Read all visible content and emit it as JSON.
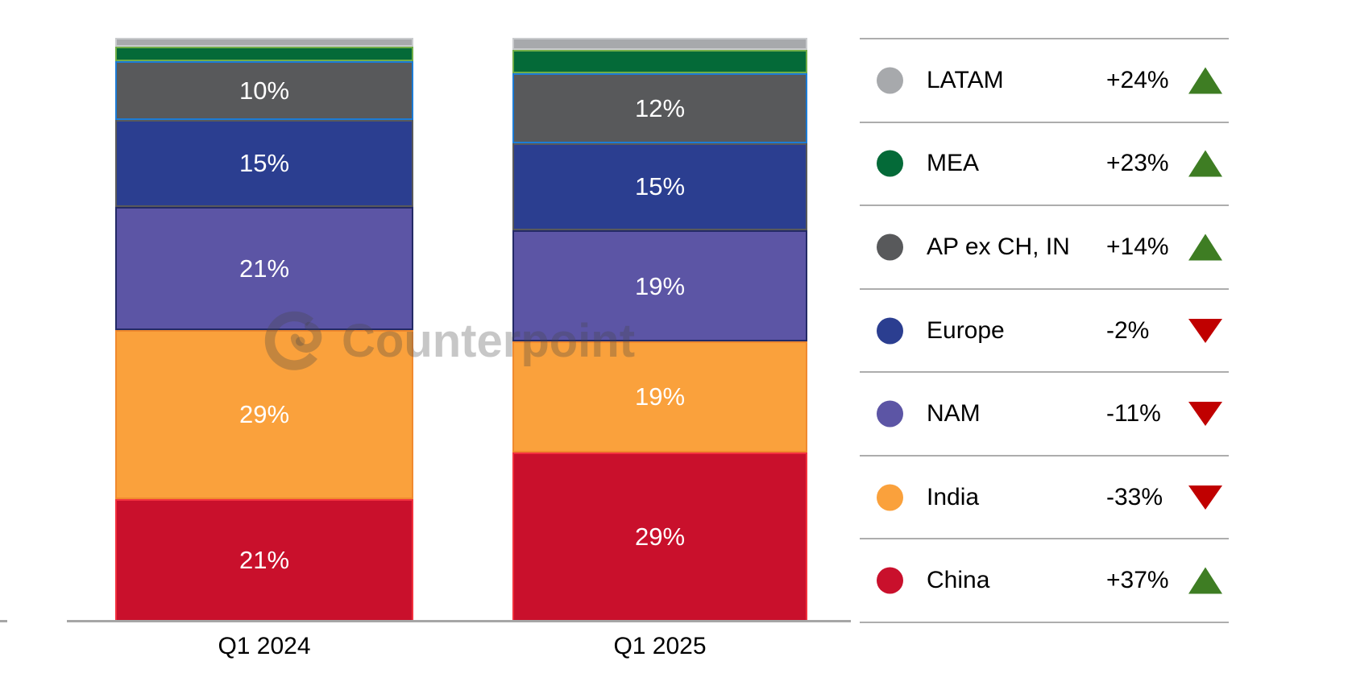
{
  "watermark": {
    "text": "Counterpoint"
  },
  "chart_data": {
    "type": "bar",
    "variant": "stacked-100-percent",
    "title": "",
    "xlabel": "",
    "ylabel": "",
    "ylim": [
      0,
      100
    ],
    "grid": false,
    "legend_position": "right",
    "categories": [
      "Q1 2024",
      "Q1 2025"
    ],
    "stack_order": "top-to-bottom",
    "series": [
      {
        "name": "LATAM",
        "values": [
          1.5,
          2
        ],
        "labels": [
          "",
          ""
        ],
        "change": "+24%",
        "trend": "up",
        "color": "#A7A9AC",
        "border_color": "#C9CBCD"
      },
      {
        "name": "MEA",
        "values": [
          2.5,
          4
        ],
        "labels": [
          "",
          ""
        ],
        "change": "+23%",
        "trend": "up",
        "color": "#046A38",
        "border_color": "#70AD47"
      },
      {
        "name": "AP ex CH, IN",
        "values": [
          10,
          12
        ],
        "labels": [
          "10%",
          "12%"
        ],
        "change": "+14%",
        "trend": "up",
        "color": "#58595B",
        "border_color": "#1C7CD6"
      },
      {
        "name": "Europe",
        "values": [
          15,
          15
        ],
        "labels": [
          "15%",
          "15%"
        ],
        "change": "-2%",
        "trend": "down",
        "color": "#2B3E90",
        "border_color": "#58595B"
      },
      {
        "name": "NAM",
        "values": [
          21,
          19
        ],
        "labels": [
          "21%",
          "19%"
        ],
        "change": "-11%",
        "trend": "down",
        "color": "#5C55A5",
        "border_color": "#242A66"
      },
      {
        "name": "India",
        "values": [
          29,
          19
        ],
        "labels": [
          "29%",
          "19%"
        ],
        "change": "-33%",
        "trend": "down",
        "color": "#FAA13C",
        "border_color": "#F08A2E"
      },
      {
        "name": "China",
        "values": [
          21,
          29
        ],
        "labels": [
          "21%",
          "29%"
        ],
        "change": "+37%",
        "trend": "up",
        "color": "#C9102C",
        "border_color": "#F2303E"
      }
    ]
  },
  "colors": {
    "trend_up": "#3E7D23",
    "trend_down": "#C00000",
    "axis_line": "#A6A6A6",
    "legend_divider": "#ADADAD",
    "segment_label_text": "#FFFFFF",
    "category_label_text": "#000000"
  }
}
